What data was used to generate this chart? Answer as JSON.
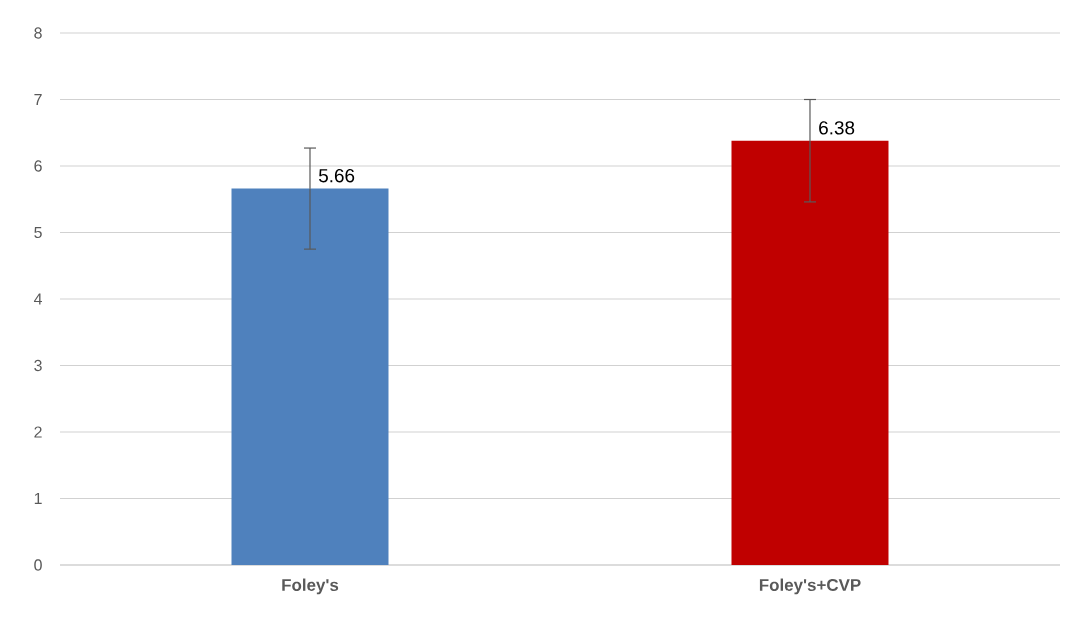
{
  "chart_data": {
    "type": "bar",
    "categories": [
      "Foley's",
      "Foley's+CVP"
    ],
    "values": [
      5.66,
      6.38
    ],
    "colors": [
      "#4f81bd",
      "#c00000"
    ],
    "errors": [
      [
        4.75,
        6.27
      ],
      [
        5.46,
        7.0
      ]
    ],
    "value_labels": [
      "5.66",
      "6.38"
    ],
    "ylim": [
      0,
      8
    ],
    "yticks": [
      0,
      1,
      2,
      3,
      4,
      5,
      6,
      7,
      8
    ],
    "grid": "y"
  }
}
